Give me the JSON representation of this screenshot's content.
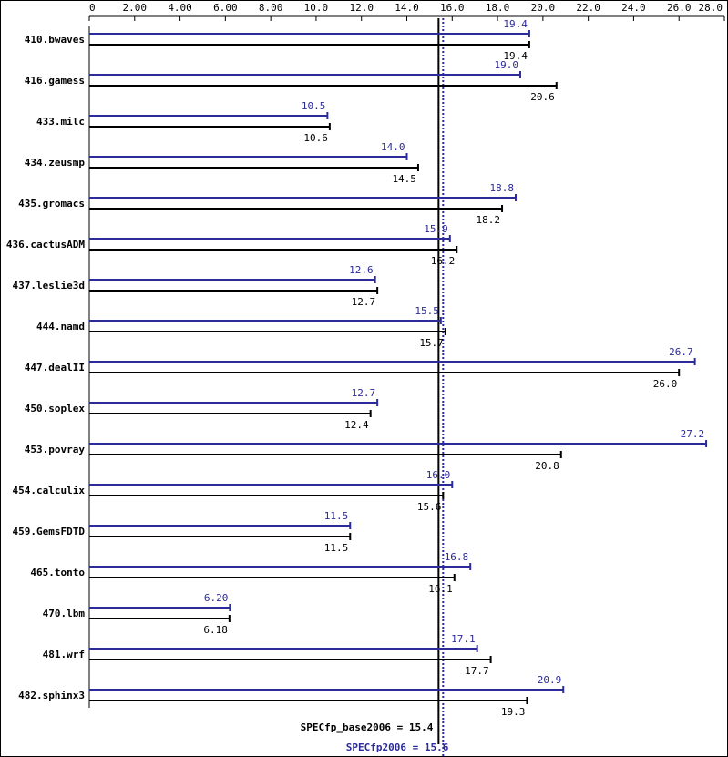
{
  "chart_data": {
    "type": "bar",
    "orientation": "horizontal",
    "categories": [
      "410.bwaves",
      "416.gamess",
      "433.milc",
      "434.zeusmp",
      "435.gromacs",
      "436.cactusADM",
      "437.leslie3d",
      "444.namd",
      "447.dealII",
      "450.soplex",
      "453.povray",
      "454.calculix",
      "459.GemsFDTD",
      "465.tonto",
      "470.lbm",
      "481.wrf",
      "482.sphinx3"
    ],
    "series": [
      {
        "color": "#2b2b99",
        "values": [
          19.4,
          19.0,
          10.5,
          14.0,
          18.8,
          15.9,
          12.6,
          15.5,
          26.7,
          12.7,
          27.2,
          16.0,
          11.5,
          16.8,
          6.2,
          17.1,
          20.9
        ],
        "value_labels": [
          "19.4",
          "19.0",
          "10.5",
          "14.0",
          "18.8",
          "15.9",
          "12.6",
          "15.5",
          "26.7",
          "12.7",
          "27.2",
          "16.0",
          "11.5",
          "16.8",
          "6.20",
          "17.1",
          "20.9"
        ]
      },
      {
        "color": "#000000",
        "values": [
          19.4,
          20.6,
          10.6,
          14.5,
          18.2,
          16.2,
          12.7,
          15.7,
          26.0,
          12.4,
          20.8,
          15.6,
          11.5,
          16.1,
          6.18,
          17.7,
          19.3
        ],
        "value_labels": [
          "19.4",
          "20.6",
          "10.6",
          "14.5",
          "18.2",
          "16.2",
          "12.7",
          "15.7",
          "26.0",
          "12.4",
          "20.8",
          "15.6",
          "11.5",
          "16.1",
          "6.18",
          "17.7",
          "19.3"
        ]
      }
    ],
    "xlim": [
      0,
      28
    ],
    "xticks": [
      0,
      {
        "value": 2,
        "label": "2.00"
      },
      {
        "value": 4,
        "label": "4.00"
      },
      {
        "value": 6,
        "label": "6.00"
      },
      {
        "value": 8,
        "label": "8.00"
      },
      {
        "value": 10,
        "label": "10.0"
      },
      {
        "value": 12,
        "label": "12.0"
      },
      {
        "value": 14,
        "label": "14.0"
      },
      {
        "value": 16,
        "label": "16.0"
      },
      {
        "value": 18,
        "label": "18.0"
      },
      {
        "value": 20,
        "label": "20.0"
      },
      {
        "value": 22,
        "label": "22.0"
      },
      {
        "value": 24,
        "label": "24.0"
      },
      {
        "value": 26,
        "label": "26.0"
      },
      {
        "value": 28,
        "label": "28.0"
      }
    ],
    "reference_lines": [
      {
        "value": 15.4,
        "label": "SPECfp_base2006 = 15.4",
        "color": "#000000",
        "style": "solid"
      },
      {
        "value": 15.6,
        "label": "SPECfp2006 = 15.6",
        "color": "#2b2b99",
        "style": "dotted"
      }
    ]
  }
}
